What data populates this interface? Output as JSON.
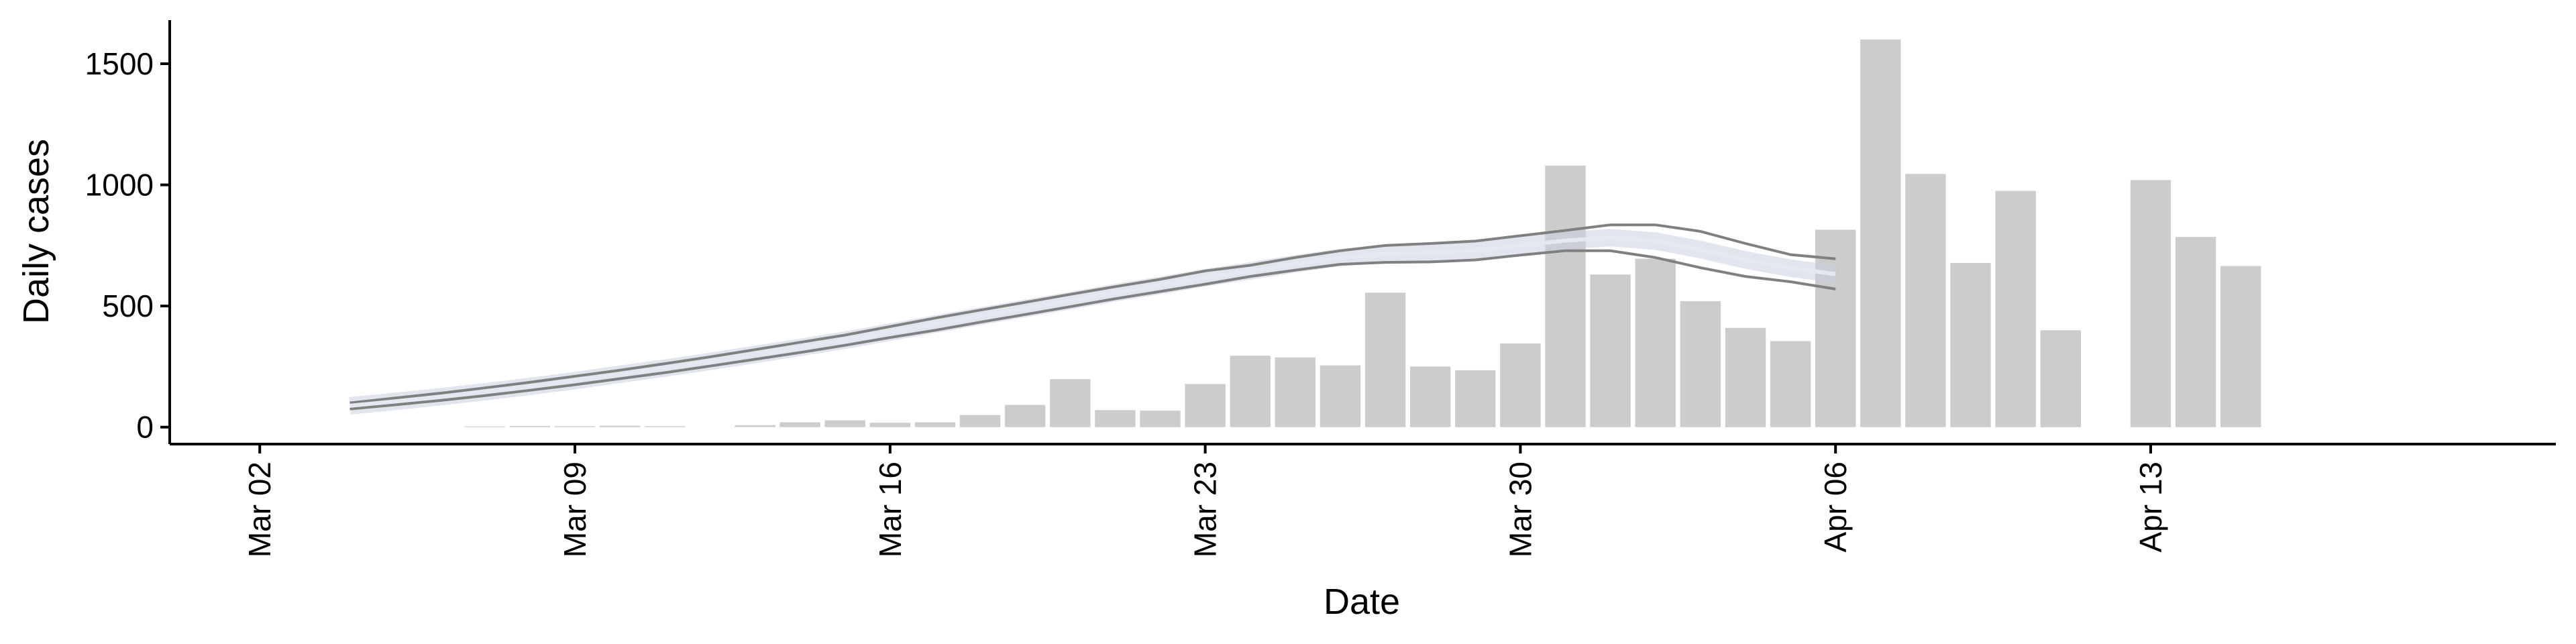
{
  "chart_data": {
    "type": "bar",
    "xlabel": "Date",
    "ylabel": "Daily cases",
    "ylim": [
      -70,
      1680
    ],
    "xlim": [
      "2020-02-29",
      "2020-04-22"
    ],
    "grid": false,
    "legend": "none",
    "x_ticks": [
      {
        "date": "2020-03-02",
        "label": "Mar 02"
      },
      {
        "date": "2020-03-09",
        "label": "Mar 09"
      },
      {
        "date": "2020-03-16",
        "label": "Mar 16"
      },
      {
        "date": "2020-03-23",
        "label": "Mar 23"
      },
      {
        "date": "2020-03-30",
        "label": "Mar 30"
      },
      {
        "date": "2020-04-06",
        "label": "Apr 06"
      },
      {
        "date": "2020-04-13",
        "label": "Apr 13"
      }
    ],
    "y_ticks": [
      {
        "value": 0,
        "label": "0"
      },
      {
        "value": 500,
        "label": "500"
      },
      {
        "value": 1000,
        "label": "1000"
      },
      {
        "value": 1500,
        "label": "1500"
      }
    ],
    "bars": {
      "color": "#cccccc",
      "x": [
        "2020-03-07",
        "2020-03-08",
        "2020-03-09",
        "2020-03-10",
        "2020-03-11",
        "2020-03-12",
        "2020-03-13",
        "2020-03-14",
        "2020-03-15",
        "2020-03-16",
        "2020-03-17",
        "2020-03-18",
        "2020-03-19",
        "2020-03-20",
        "2020-03-21",
        "2020-03-22",
        "2020-03-23",
        "2020-03-24",
        "2020-03-25",
        "2020-03-26",
        "2020-03-27",
        "2020-03-28",
        "2020-03-29",
        "2020-03-30",
        "2020-03-31",
        "2020-04-01",
        "2020-04-02",
        "2020-04-03",
        "2020-04-04",
        "2020-04-05",
        "2020-04-06",
        "2020-04-07",
        "2020-04-08",
        "2020-04-09",
        "2020-04-10",
        "2020-04-11",
        "2020-04-12",
        "2020-04-13",
        "2020-04-14",
        "2020-04-15"
      ],
      "values": [
        3,
        5,
        4,
        6,
        4,
        0,
        8,
        20,
        28,
        18,
        20,
        50,
        92,
        198,
        70,
        68,
        178,
        295,
        288,
        255,
        555,
        250,
        235,
        345,
        1080,
        630,
        695,
        520,
        410,
        355,
        815,
        1600,
        1045,
        678,
        975,
        400,
        0,
        1020,
        785,
        665
      ]
    },
    "series": [
      {
        "color": "#808080",
        "x": [
          "2020-03-04",
          "2020-03-05",
          "2020-03-06",
          "2020-03-07",
          "2020-03-08",
          "2020-03-09",
          "2020-03-10",
          "2020-03-11",
          "2020-03-12",
          "2020-03-13",
          "2020-03-14",
          "2020-03-15",
          "2020-03-16",
          "2020-03-17",
          "2020-03-18",
          "2020-03-19",
          "2020-03-20",
          "2020-03-21",
          "2020-03-22",
          "2020-03-23",
          "2020-03-24",
          "2020-03-25",
          "2020-03-26",
          "2020-03-27",
          "2020-03-28",
          "2020-03-29",
          "2020-03-30",
          "2020-03-31",
          "2020-04-01",
          "2020-04-02",
          "2020-04-03",
          "2020-04-04",
          "2020-04-05",
          "2020-04-06"
        ],
        "values": [
          100,
          120,
          140,
          162,
          185,
          210,
          235,
          262,
          290,
          320,
          350,
          380,
          415,
          450,
          483,
          515,
          548,
          580,
          610,
          645,
          668,
          700,
          728,
          750,
          758,
          768,
          790,
          812,
          835,
          835,
          808,
          758,
          712,
          695
        ]
      },
      {
        "color": "#808080",
        "x": [
          "2020-03-04",
          "2020-03-05",
          "2020-03-06",
          "2020-03-07",
          "2020-03-08",
          "2020-03-09",
          "2020-03-10",
          "2020-03-11",
          "2020-03-12",
          "2020-03-13",
          "2020-03-14",
          "2020-03-15",
          "2020-03-16",
          "2020-03-17",
          "2020-03-18",
          "2020-03-19",
          "2020-03-20",
          "2020-03-21",
          "2020-03-22",
          "2020-03-23",
          "2020-03-24",
          "2020-03-25",
          "2020-03-26",
          "2020-03-27",
          "2020-03-28",
          "2020-03-29",
          "2020-03-30",
          "2020-03-31",
          "2020-04-01",
          "2020-04-02",
          "2020-04-03",
          "2020-04-04",
          "2020-04-05",
          "2020-04-06"
        ],
        "values": [
          75,
          92,
          110,
          130,
          152,
          175,
          200,
          225,
          252,
          280,
          308,
          338,
          370,
          400,
          433,
          465,
          497,
          530,
          560,
          590,
          622,
          648,
          672,
          680,
          682,
          690,
          710,
          728,
          728,
          700,
          658,
          622,
          600,
          570
        ]
      },
      {
        "color": "#c7cfe0",
        "x": [
          "2020-03-04",
          "2020-03-05",
          "2020-03-06",
          "2020-03-07",
          "2020-03-08",
          "2020-03-09",
          "2020-03-10",
          "2020-03-11",
          "2020-03-12",
          "2020-03-13",
          "2020-03-14",
          "2020-03-15",
          "2020-03-16",
          "2020-03-17",
          "2020-03-18",
          "2020-03-19",
          "2020-03-20",
          "2020-03-21",
          "2020-03-22",
          "2020-03-23",
          "2020-03-24",
          "2020-03-25",
          "2020-03-26",
          "2020-03-27",
          "2020-03-28",
          "2020-03-29",
          "2020-03-30",
          "2020-03-31",
          "2020-04-01",
          "2020-04-02",
          "2020-04-03",
          "2020-04-04",
          "2020-04-05",
          "2020-04-06"
        ],
        "values": [
          88,
          106,
          125,
          146,
          168,
          192,
          218,
          244,
          271,
          300,
          329,
          359,
          392,
          425,
          458,
          490,
          522,
          555,
          585,
          617,
          645,
          674,
          700,
          715,
          720,
          729,
          750,
          770,
          782,
          768,
          733,
          690,
          656,
          632
        ]
      }
    ]
  }
}
